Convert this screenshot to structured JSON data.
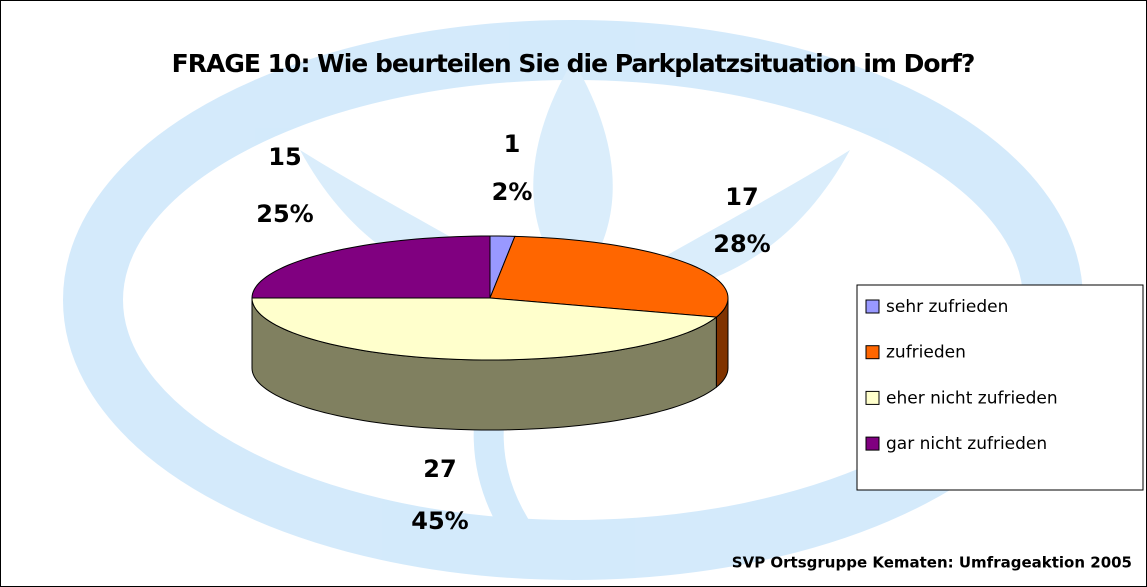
{
  "chart_data": {
    "type": "pie3d",
    "title": "FRAGE 10: Wie beurteilen Sie die Parkplatzsituation im Dorf?",
    "categories": [
      "sehr zufrieden",
      "zufrieden",
      "eher nicht zufrieden",
      "gar nicht zufrieden"
    ],
    "values": [
      1,
      17,
      27,
      15
    ],
    "shares": [
      "2%",
      "28%",
      "45%",
      "25%"
    ],
    "colors": [
      "#9999ff",
      "#ff6600",
      "#ffffcc",
      "#800080"
    ],
    "legend": "right",
    "source": "SVP Ortsgruppe Kematen: Umfrageaktion 2005"
  }
}
